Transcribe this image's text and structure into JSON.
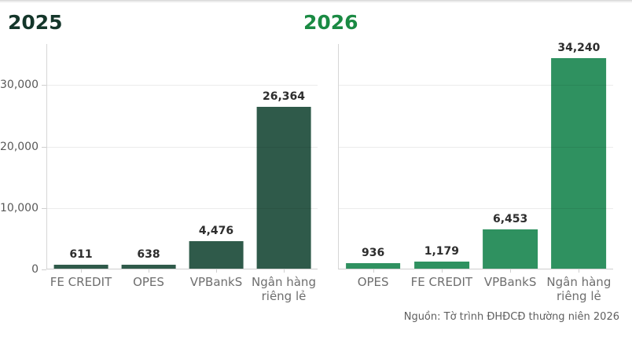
{
  "source_note": "Nguồn: Tờ trình ĐHĐCĐ thường niên 2026",
  "chart_data": [
    {
      "type": "bar",
      "title": "2025",
      "title_color": "#14362a",
      "bar_color": "#2f5a4a",
      "categories": [
        "FE CREDIT",
        "OPES",
        "VPBankS",
        "Ngân hàng riêng lẻ"
      ],
      "values": [
        611,
        638,
        4476,
        26364
      ],
      "value_labels": [
        "611",
        "638",
        "4,476",
        "26,364"
      ],
      "xlabel": "",
      "ylabel": "",
      "ylim": [
        0,
        36700
      ],
      "yticks": [
        0,
        10000,
        20000,
        30000
      ],
      "ytick_labels": [
        "0",
        "10,000",
        "20,000",
        "30,000"
      ],
      "show_ytick_labels": true,
      "grid": true,
      "legend": "none"
    },
    {
      "type": "bar",
      "title": "2026",
      "title_color": "#1a8a43",
      "bar_color": "#2f9160",
      "categories": [
        "OPES",
        "FE CREDIT",
        "VPBankS",
        "Ngân hàng riêng lẻ"
      ],
      "values": [
        936,
        1179,
        6453,
        34240
      ],
      "value_labels": [
        "936",
        "1,179",
        "6,453",
        "34,240"
      ],
      "xlabel": "",
      "ylabel": "",
      "ylim": [
        0,
        36700
      ],
      "yticks": [
        0,
        10000,
        20000,
        30000
      ],
      "ytick_labels": [
        "0",
        "10,000",
        "20,000",
        "30,000"
      ],
      "show_ytick_labels": false,
      "grid": true,
      "legend": "none"
    }
  ]
}
